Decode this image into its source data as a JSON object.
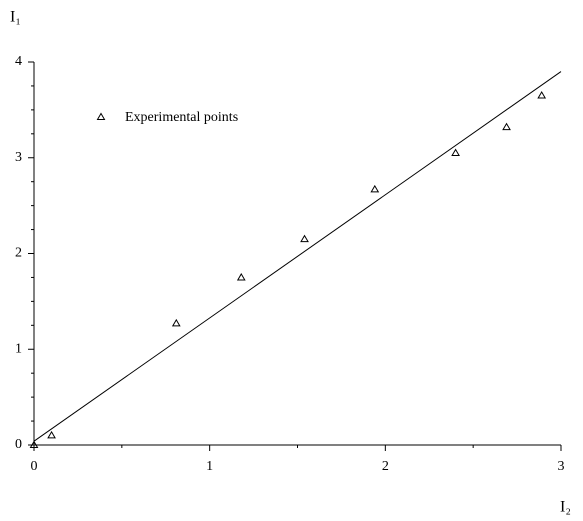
{
  "chart_data": {
    "type": "scatter",
    "x_label": "I₂",
    "y_label": "I₁",
    "xlim": [
      0,
      3
    ],
    "ylim": [
      0,
      4
    ],
    "xticks": [
      0,
      1,
      2,
      3
    ],
    "yticks": [
      0,
      1,
      2,
      3,
      4
    ],
    "xminorticks": [
      0.5,
      1.5,
      2.5
    ],
    "yminorticks": [
      0.25,
      0.5,
      0.75,
      1.25,
      1.5,
      1.75,
      2.25,
      2.5,
      2.75,
      3.25,
      3.5,
      3.75
    ],
    "series": [
      {
        "name": "Experimental points",
        "color": "#000000",
        "marker": "triangle",
        "x": [
          0,
          0.1,
          0.81,
          1.18,
          1.54,
          1.94,
          2.4,
          2.69,
          2.89
        ],
        "values": [
          0,
          0.1,
          1.27,
          1.75,
          2.15,
          2.67,
          3.05,
          3.32,
          3.65
        ]
      }
    ],
    "fit_line": {
      "color": "#000000",
      "x": [
        0,
        3
      ],
      "values": [
        0.04,
        3.9
      ]
    },
    "legend": "upper-left"
  }
}
